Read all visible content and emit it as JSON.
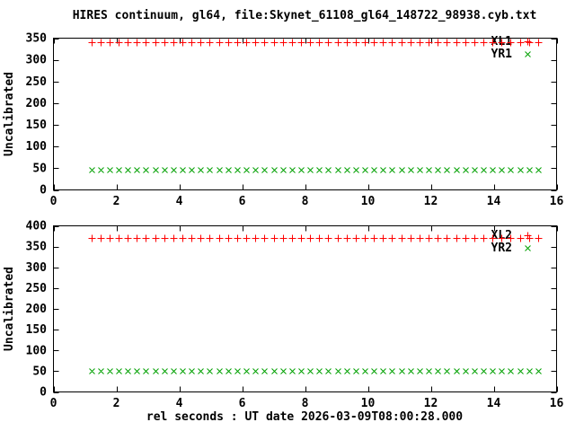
{
  "title": "HIRES continuum, gl64, file:Skynet_61108_gl64_148722_98938.cyb.txt",
  "xlabel": "rel seconds : UT date 2026-03-09T08:00:28.000",
  "colors": {
    "xl_series": "#ff0000",
    "yr_series": "#00a000",
    "axis": "#000000",
    "background": "#ffffff"
  },
  "chart_data": [
    {
      "type": "scatter",
      "panel": "top",
      "ylabel": "Uncalibrated",
      "xlim": [
        0,
        16
      ],
      "ylim": [
        0,
        350
      ],
      "xticks": [
        0,
        2,
        4,
        6,
        8,
        10,
        12,
        14,
        16
      ],
      "yticks": [
        0,
        50,
        100,
        150,
        200,
        250,
        300,
        350
      ],
      "grid": false,
      "legend_position": "top-right-inside",
      "x": [
        1.2,
        1.49,
        1.78,
        2.07,
        2.36,
        2.65,
        2.94,
        3.23,
        3.52,
        3.81,
        4.1,
        4.39,
        4.68,
        4.97,
        5.26,
        5.55,
        5.84,
        6.13,
        6.42,
        6.71,
        7.0,
        7.29,
        7.58,
        7.87,
        8.16,
        8.45,
        8.74,
        9.03,
        9.32,
        9.61,
        9.9,
        10.19,
        10.48,
        10.77,
        11.06,
        11.35,
        11.64,
        11.93,
        12.22,
        12.51,
        12.8,
        13.09,
        13.38,
        13.67,
        13.96,
        14.25,
        14.54,
        14.83,
        15.12,
        15.41
      ],
      "series": [
        {
          "name": "XL1",
          "marker": "plus",
          "color": "#ff0000",
          "y_constant": 340
        },
        {
          "name": "YR1",
          "marker": "cross",
          "color": "#00a000",
          "y_constant": 46
        }
      ]
    },
    {
      "type": "scatter",
      "panel": "bottom",
      "ylabel": "Uncalibrated",
      "xlim": [
        0,
        16
      ],
      "ylim": [
        0,
        400
      ],
      "xticks": [
        0,
        2,
        4,
        6,
        8,
        10,
        12,
        14,
        16
      ],
      "yticks": [
        0,
        50,
        100,
        150,
        200,
        250,
        300,
        350,
        400
      ],
      "grid": false,
      "legend_position": "top-right-inside",
      "x": [
        1.2,
        1.49,
        1.78,
        2.07,
        2.36,
        2.65,
        2.94,
        3.23,
        3.52,
        3.81,
        4.1,
        4.39,
        4.68,
        4.97,
        5.26,
        5.55,
        5.84,
        6.13,
        6.42,
        6.71,
        7.0,
        7.29,
        7.58,
        7.87,
        8.16,
        8.45,
        8.74,
        9.03,
        9.32,
        9.61,
        9.9,
        10.19,
        10.48,
        10.77,
        11.06,
        11.35,
        11.64,
        11.93,
        12.22,
        12.51,
        12.8,
        13.09,
        13.38,
        13.67,
        13.96,
        14.25,
        14.54,
        14.83,
        15.12,
        15.41
      ],
      "series": [
        {
          "name": "XL2",
          "marker": "plus",
          "color": "#ff0000",
          "y_constant": 370
        },
        {
          "name": "YR2",
          "marker": "cross",
          "color": "#00a000",
          "y_constant": 50
        }
      ]
    }
  ]
}
